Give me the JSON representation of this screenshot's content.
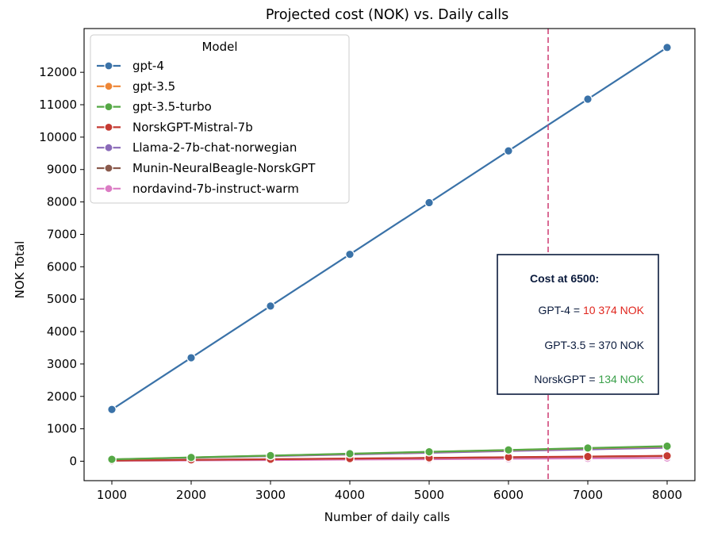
{
  "chart_data": {
    "type": "line",
    "title": "Projected cost (NOK) vs. Daily calls",
    "xlabel": "Number of daily calls",
    "ylabel": "NOK Total",
    "x": [
      1000,
      2000,
      3000,
      4000,
      5000,
      6000,
      7000,
      8000
    ],
    "xlim": [
      650,
      8350
    ],
    "ylim": [
      -600,
      13350
    ],
    "xticks": [
      1000,
      2000,
      3000,
      4000,
      5000,
      6000,
      7000,
      8000
    ],
    "yticks": [
      0,
      1000,
      2000,
      3000,
      4000,
      5000,
      6000,
      7000,
      8000,
      9000,
      10000,
      11000,
      12000
    ],
    "grid": false,
    "legend": {
      "title": "Model",
      "placement": "top-left"
    },
    "series": [
      {
        "name": "gpt-4",
        "color": "#3a72a8",
        "values": [
          1596,
          3192,
          4788,
          6383,
          7979,
          9575,
          11171,
          12767
        ]
      },
      {
        "name": "gpt-3.5",
        "color": "#ee8636",
        "values": [
          57,
          114,
          171,
          228,
          285,
          342,
          399,
          455
        ]
      },
      {
        "name": "gpt-3.5-turbo",
        "color": "#55a845",
        "values": [
          58,
          116,
          174,
          232,
          290,
          348,
          406,
          465
        ]
      },
      {
        "name": "NorskGPT-Mistral-7b",
        "color": "#c53a32",
        "values": [
          21,
          41,
          62,
          82,
          103,
          124,
          144,
          165
        ]
      },
      {
        "name": "Llama-2-7b-chat-norwegian",
        "color": "#8a6ab8",
        "values": [
          52,
          104,
          156,
          208,
          260,
          312,
          364,
          416
        ]
      },
      {
        "name": "Munin-NeuralBeagle-NorskGPT",
        "color": "#8a5a4c",
        "values": [
          20,
          40,
          60,
          80,
          100,
          120,
          140,
          160
        ]
      },
      {
        "name": "nordavind-7b-instruct-warm",
        "color": "#db7cc4",
        "values": [
          12,
          25,
          37,
          50,
          62,
          75,
          87,
          100
        ]
      }
    ],
    "reference_line": {
      "x": 6500,
      "color": "#d0467a",
      "style": "dashed"
    },
    "annotation": {
      "heading": "Cost at 6500:",
      "lines": [
        {
          "label": "GPT-4 = ",
          "value": "10 374 NOK",
          "value_color": "#e0261e"
        },
        {
          "label": "GPT-3.5 = 370 NOK",
          "value": "",
          "value_color": "#0a1a3c"
        },
        {
          "label": "NorskGPT = ",
          "value": "134 NOK",
          "value_color": "#3aa04a"
        }
      ],
      "border_color": "#0a1a3c",
      "placement": "right-middle"
    }
  }
}
